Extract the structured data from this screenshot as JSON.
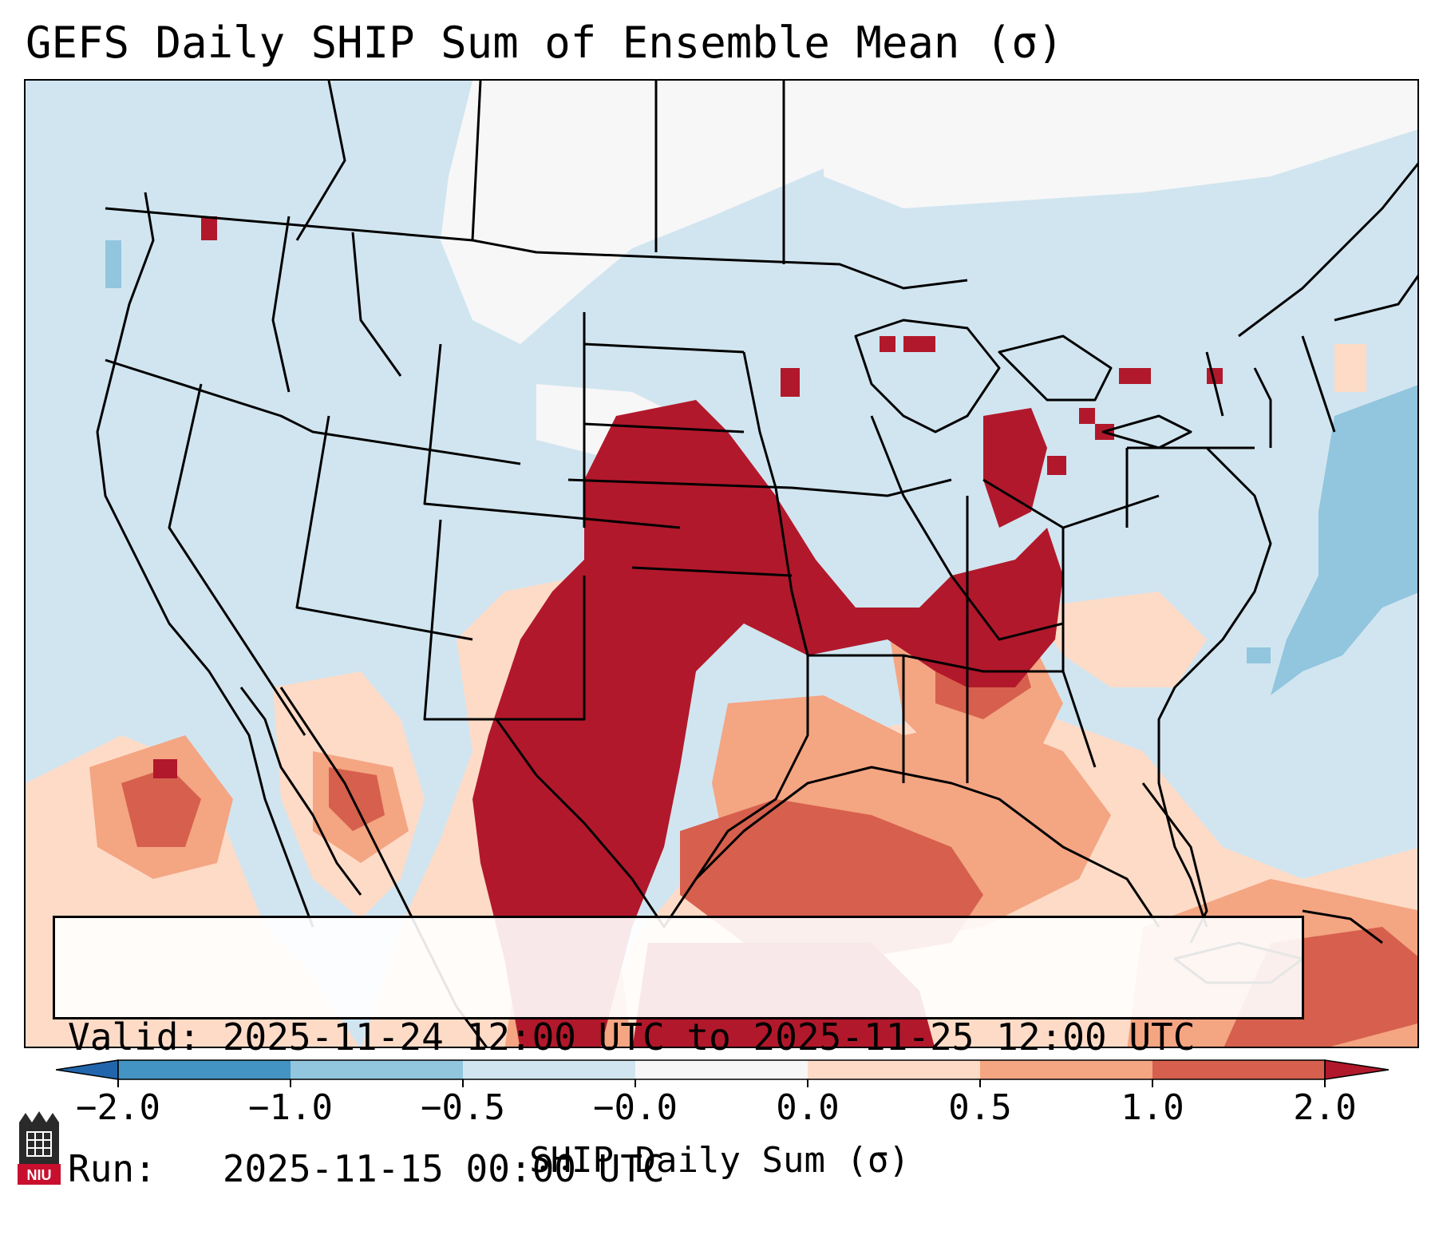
{
  "title": "GEFS Daily SHIP Sum of Ensemble Mean (σ)",
  "info": {
    "valid_line": "Valid: 2025-11-24 12:00 UTC to 2025-11-25 12:00 UTC",
    "run_line": "Run:   2025-11-15 00:00 UTC"
  },
  "colorbar": {
    "label": "SHIP Daily Sum (σ)",
    "ticks": [
      "−2.0",
      "−1.0",
      "−0.5",
      "−0.0",
      "0.0",
      "0.5",
      "1.0",
      "2.0"
    ],
    "colors": {
      "extend_low": "#2166ac",
      "bin_1": "#4393c3",
      "bin_2": "#92c5de",
      "bin_3": "#d1e5f0",
      "bin_4": "#f7f7f7",
      "bin_5": "#fddbc7",
      "bin_6": "#f4a582",
      "bin_7": "#d6604d",
      "extend_high": "#b2182b"
    }
  },
  "map": {
    "background_color": "#d1e5f0",
    "high_anomaly_region": "Southern Plains, Mid-South and Ohio Valley",
    "outline_color": "#000000"
  },
  "logo": {
    "text": "NIU",
    "icon": "university-logo-icon"
  }
}
